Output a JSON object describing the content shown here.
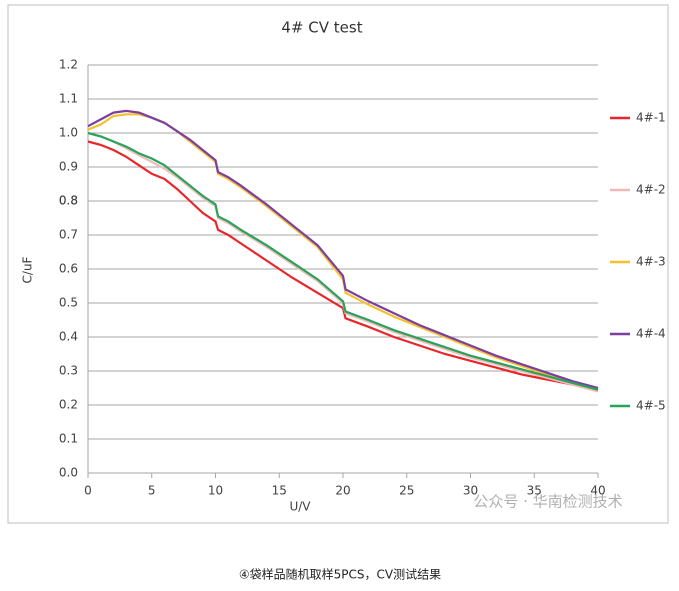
{
  "chart_data": {
    "type": "line",
    "title": "4# CV test",
    "x_label": "U/V",
    "y_label": "C/uF",
    "x": [
      0,
      1,
      2,
      3,
      4,
      5,
      6,
      7,
      8,
      9,
      10,
      10.2,
      11,
      12,
      14,
      16,
      18,
      20,
      20.2,
      22,
      24,
      26,
      28,
      30,
      32,
      34,
      36,
      38,
      40
    ],
    "series": [
      {
        "name": "4#-1",
        "color": "#e8262a",
        "values": [
          0.975,
          0.965,
          0.95,
          0.93,
          0.905,
          0.88,
          0.865,
          0.835,
          0.8,
          0.765,
          0.74,
          0.715,
          0.7,
          0.675,
          0.625,
          0.575,
          0.53,
          0.485,
          0.455,
          0.43,
          0.4,
          0.375,
          0.35,
          0.33,
          0.31,
          0.29,
          0.275,
          0.26,
          0.245
        ]
      },
      {
        "name": "4#-2",
        "color": "#f4b8b8",
        "values": [
          1.0,
          0.99,
          0.975,
          0.955,
          0.935,
          0.915,
          0.895,
          0.87,
          0.84,
          0.81,
          0.785,
          0.75,
          0.735,
          0.71,
          0.665,
          0.615,
          0.565,
          0.5,
          0.47,
          0.445,
          0.415,
          0.39,
          0.365,
          0.34,
          0.32,
          0.3,
          0.28,
          0.26,
          0.24
        ]
      },
      {
        "name": "4#-3",
        "color": "#f5c02a",
        "values": [
          1.01,
          1.025,
          1.05,
          1.055,
          1.055,
          1.045,
          1.03,
          1.005,
          0.975,
          0.945,
          0.915,
          0.88,
          0.865,
          0.84,
          0.785,
          0.725,
          0.665,
          0.57,
          0.53,
          0.495,
          0.46,
          0.43,
          0.4,
          0.37,
          0.34,
          0.315,
          0.29,
          0.265,
          0.245
        ]
      },
      {
        "name": "4#-4",
        "color": "#7b3fa0",
        "values": [
          1.02,
          1.04,
          1.06,
          1.065,
          1.06,
          1.045,
          1.03,
          1.005,
          0.98,
          0.95,
          0.92,
          0.885,
          0.87,
          0.845,
          0.79,
          0.73,
          0.67,
          0.58,
          0.54,
          0.505,
          0.47,
          0.435,
          0.405,
          0.375,
          0.345,
          0.32,
          0.295,
          0.27,
          0.25
        ]
      },
      {
        "name": "4#-5",
        "color": "#27a35a",
        "values": [
          1.0,
          0.99,
          0.975,
          0.96,
          0.94,
          0.925,
          0.905,
          0.875,
          0.845,
          0.815,
          0.79,
          0.755,
          0.74,
          0.715,
          0.67,
          0.62,
          0.57,
          0.505,
          0.475,
          0.45,
          0.42,
          0.395,
          0.37,
          0.345,
          0.325,
          0.305,
          0.285,
          0.265,
          0.245
        ]
      }
    ],
    "xlim": [
      0,
      40
    ],
    "xticks": [
      0,
      5,
      10,
      15,
      20,
      25,
      30,
      35,
      40
    ],
    "ylim": [
      0,
      1.2
    ],
    "yticks": [
      {
        "value": 0,
        "label": "0.0"
      },
      0.1,
      0.2,
      0.3,
      0.4,
      0.5,
      0.6,
      0.7,
      0.8,
      0.9,
      {
        "value": 1,
        "label": "1.0"
      },
      1.1,
      0.8,
      {
        "value": 1.2,
        "label": "1.2"
      }
    ],
    "grid": true,
    "legend": "right"
  },
  "watermark": "公众号 · 华南检测技术",
  "caption": "④袋样品随机取样5PCS，CV测试结果"
}
